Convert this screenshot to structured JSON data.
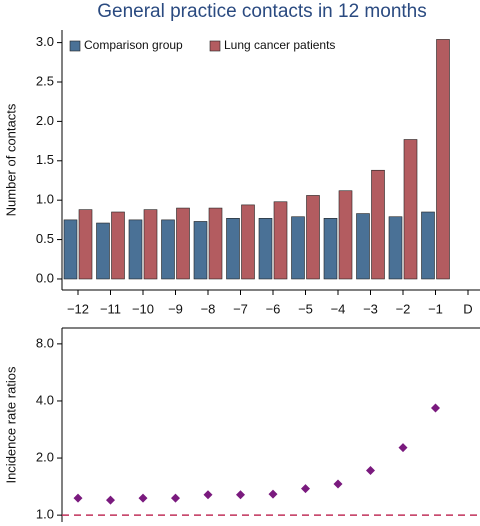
{
  "chart_data": [
    {
      "type": "bar",
      "title": "General practice contacts in 12 months",
      "y_label": "Number of contacts",
      "categories": [
        "−12",
        "−11",
        "−10",
        "−9",
        "−8",
        "−7",
        "−6",
        "−5",
        "−4",
        "−3",
        "−2",
        "−1",
        "D"
      ],
      "series": [
        {
          "name": "Comparison group",
          "color": "#4a7196",
          "values": [
            0.75,
            0.71,
            0.75,
            0.75,
            0.73,
            0.77,
            0.77,
            0.79,
            0.77,
            0.83,
            0.79,
            0.85,
            null
          ]
        },
        {
          "name": "Lung cancer patients",
          "color": "#b35c60",
          "values": [
            0.88,
            0.85,
            0.88,
            0.9,
            0.9,
            0.94,
            0.98,
            1.06,
            1.12,
            1.38,
            1.77,
            3.04,
            null
          ]
        }
      ],
      "ylim": [
        -0.14,
        3.16
      ],
      "yticks": [
        {
          "value": 0,
          "label": "0.0"
        },
        {
          "value": 0.5,
          "label": "0.5"
        },
        {
          "value": 1,
          "label": "1.0"
        },
        {
          "value": 1.5,
          "label": "1.5"
        },
        {
          "value": 2,
          "label": "2.0"
        },
        {
          "value": 2.5,
          "label": "2.5"
        },
        {
          "value": 3,
          "label": "3.0"
        }
      ],
      "legend": "top-left"
    },
    {
      "type": "scatter",
      "y_label": "Incidence rate ratios",
      "categories": [
        "−12",
        "−11",
        "−10",
        "−9",
        "−8",
        "−7",
        "−6",
        "−5",
        "−4",
        "−3",
        "−2",
        "−1",
        "D"
      ],
      "values": [
        1.23,
        1.2,
        1.23,
        1.23,
        1.28,
        1.28,
        1.29,
        1.38,
        1.46,
        1.72,
        2.27,
        3.67,
        null
      ],
      "color": "#7a1a7e",
      "log_scale": true,
      "ylim": [
        0.92,
        9.7
      ],
      "yticks": [
        {
          "value": 1,
          "label": "1.0"
        },
        {
          "value": 2,
          "label": "2.0"
        },
        {
          "value": 4,
          "label": "4.0"
        },
        {
          "value": 8,
          "label": "8.0"
        }
      ],
      "reference_line": 1,
      "reference_color": "#c0305a"
    }
  ]
}
